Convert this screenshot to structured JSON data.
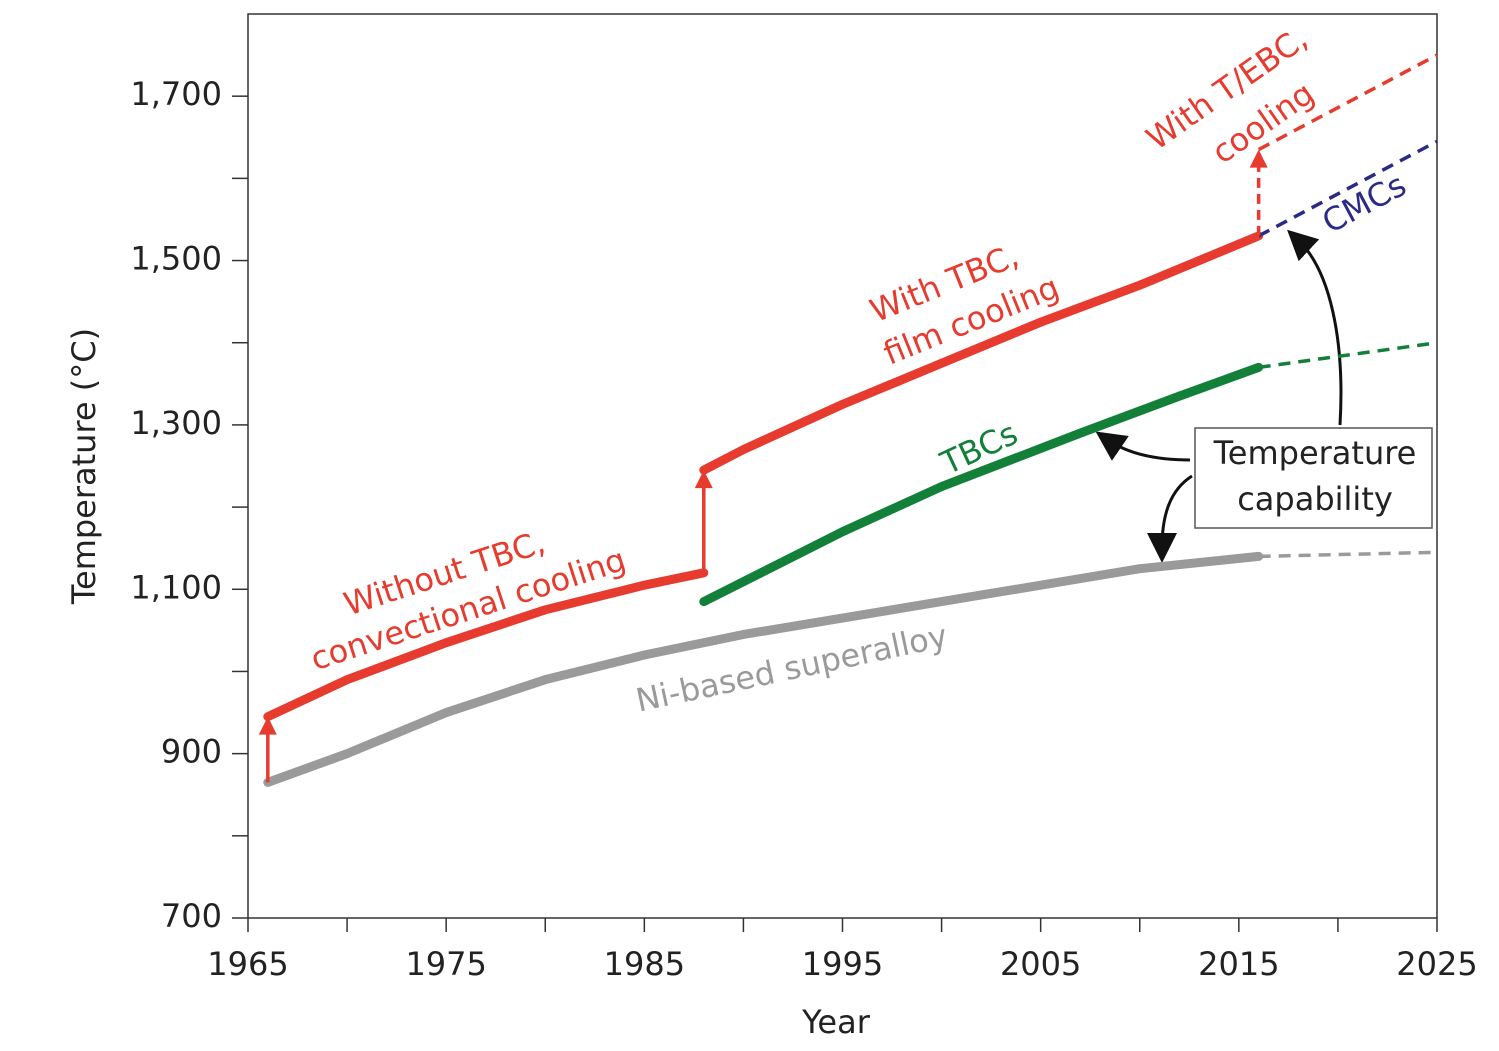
{
  "chart_data": {
    "type": "line",
    "x_label": "Year",
    "y_label": "Temperature (°C)",
    "xlim": [
      1965,
      2025
    ],
    "xticks": [
      1965,
      1975,
      1985,
      1995,
      2005,
      2015,
      2025
    ],
    "xminorticks": [
      1970,
      1980,
      1990,
      2000,
      2010,
      2020
    ],
    "ylim": [
      700,
      1800
    ],
    "yticks": [
      700,
      900,
      {
        "value": 1100,
        "label": "1,100"
      },
      {
        "value": 1300,
        "label": "1,300"
      },
      {
        "value": 1500,
        "label": "1,500"
      },
      {
        "value": 1700,
        "label": "1,700"
      }
    ],
    "yminorticks": [
      800,
      1000,
      1200,
      1400,
      1600
    ],
    "series": [
      {
        "color": "#e63b2e",
        "dashed": false,
        "x": [
          1966,
          1970,
          1975,
          1980,
          1985,
          1988
        ],
        "values": [
          945,
          990,
          1035,
          1075,
          1105,
          1120
        ]
      },
      {
        "color": "#e63b2e",
        "dashed": false,
        "x": [
          1988,
          1990,
          1995,
          2000,
          2005,
          2010,
          2016
        ],
        "values": [
          1245,
          1270,
          1325,
          1375,
          1425,
          1470,
          1530
        ]
      },
      {
        "color": "#e63b2e",
        "dashed": true,
        "x": [
          2016,
          2025
        ],
        "values": [
          1635,
          1750
        ]
      },
      {
        "color": "#128038",
        "dashed": false,
        "x": [
          1988,
          1995,
          2000,
          2007,
          2012,
          2016
        ],
        "values": [
          1085,
          1170,
          1225,
          1290,
          1335,
          1370
        ]
      },
      {
        "color": "#128038",
        "dashed": true,
        "x": [
          2016,
          2025
        ],
        "values": [
          1370,
          1400
        ]
      },
      {
        "color": "#9a9a9a",
        "dashed": false,
        "x": [
          1966,
          1970,
          1975,
          1980,
          1985,
          1990,
          1995,
          2000,
          2005,
          2010,
          2016
        ],
        "values": [
          865,
          900,
          950,
          990,
          1020,
          1045,
          1065,
          1085,
          1105,
          1125,
          1140
        ]
      },
      {
        "color": "#9a9a9a",
        "dashed": true,
        "x": [
          2016,
          2025
        ],
        "values": [
          1140,
          1145
        ]
      },
      {
        "color": "#2b2b85",
        "dashed": true,
        "x": [
          2016,
          2025
        ],
        "values": [
          1530,
          1645
        ]
      }
    ],
    "arrows": [
      {
        "x": 1966,
        "from": 865,
        "to": 945,
        "color": "#e63b2e",
        "dashed": false
      },
      {
        "x": 1988,
        "from": 1120,
        "to": 1245,
        "color": "#e63b2e",
        "dashed": false
      },
      {
        "x": 2016,
        "from": 1530,
        "to": 1635,
        "color": "#e63b2e",
        "dashed": true
      }
    ],
    "annotations": [
      {
        "lines": [
          "Without TBC,",
          "convectional cooling"
        ],
        "color": "#e63b2e"
      },
      {
        "lines": [
          "With TBC,",
          "film cooling"
        ],
        "color": "#e63b2e"
      },
      {
        "lines": [
          "With T/EBC,",
          "cooling"
        ],
        "color": "#e63b2e"
      },
      {
        "lines": [
          "TBCs"
        ],
        "color": "#128038"
      },
      {
        "lines": [
          "CMCs"
        ],
        "color": "#2b2b85"
      },
      {
        "lines": [
          "Ni-based superalloy"
        ],
        "color": "#9a9a9a"
      },
      {
        "lines": [
          "Temperature",
          "capability"
        ],
        "color": "#222222"
      }
    ]
  }
}
